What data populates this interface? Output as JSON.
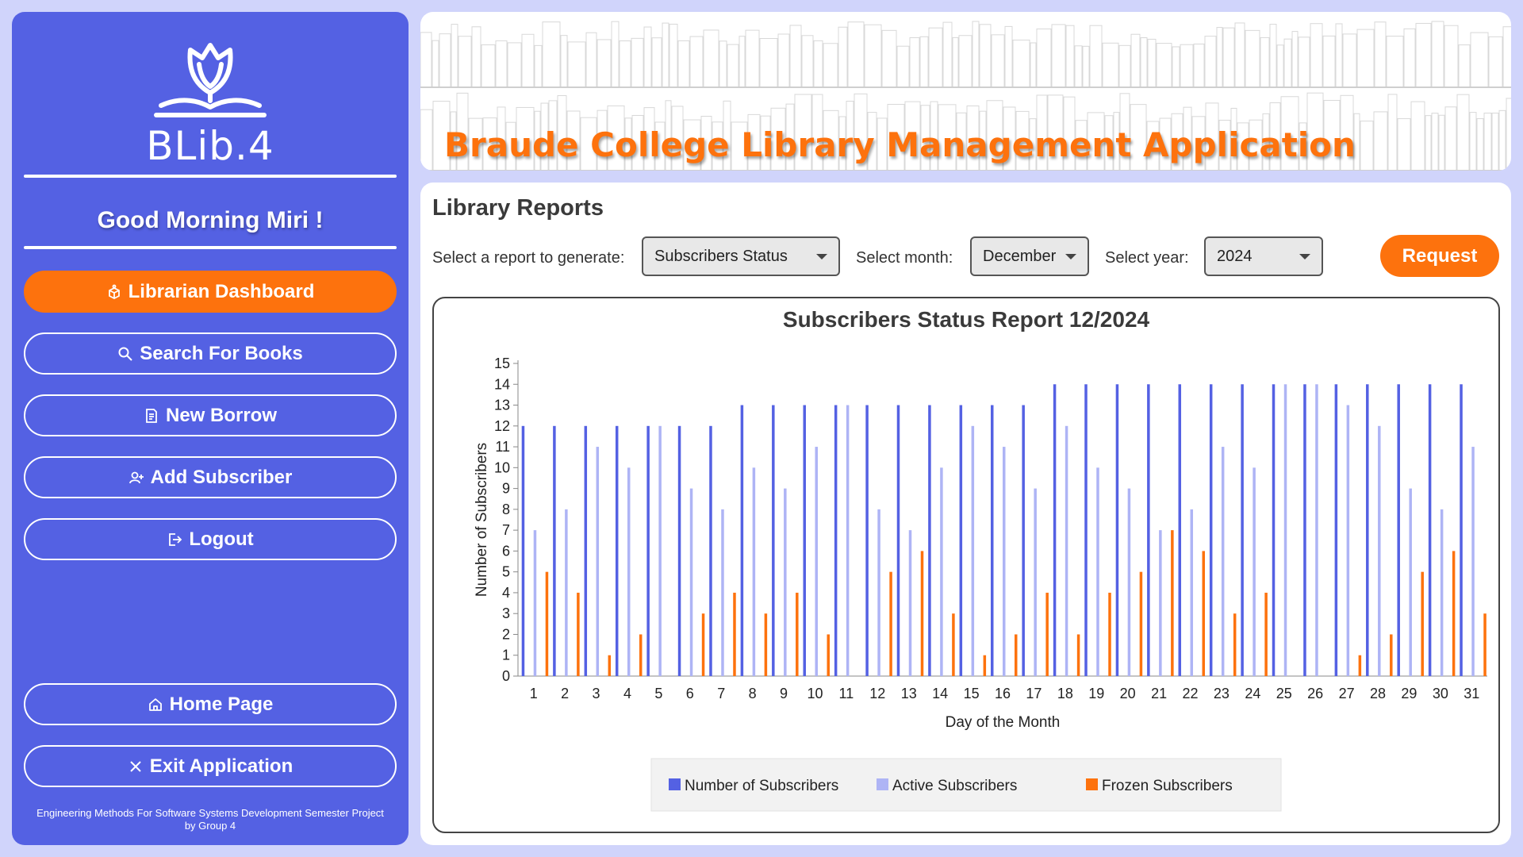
{
  "sidebar": {
    "logo_text": "BLib.4",
    "greeting": "Good Morning Miri !",
    "nav": [
      {
        "label": "Librarian Dashboard",
        "icon": "box-icon"
      },
      {
        "label": "Search For Books",
        "icon": "search-icon"
      },
      {
        "label": "New Borrow",
        "icon": "document-icon"
      },
      {
        "label": "Add Subscriber",
        "icon": "add-user-icon"
      },
      {
        "label": "Logout",
        "icon": "logout-icon"
      }
    ],
    "home_label": "Home Page",
    "exit_label": "Exit Application",
    "footer_line1": "Engineering Methods For Software Systems Development Semester Project",
    "footer_line2": "by Group 4"
  },
  "header": {
    "title": "Braude College Library Management Application"
  },
  "reports": {
    "section_title": "Library Reports",
    "report_label": "Select a report to generate:",
    "report_value": "Subscribers Status",
    "month_label": "Select month:",
    "month_value": "December",
    "year_label": "Select year:",
    "year_value": "2024",
    "request_label": "Request"
  },
  "colors": {
    "sidebar": "#5461e3",
    "accent": "#fd720d",
    "series_total": "#5461e3",
    "series_active": "#aeb4f5",
    "series_frozen": "#fd720d"
  },
  "chart_data": {
    "type": "bar",
    "title": "Subscribers Status Report 12/2024",
    "xlabel": "Day of the Month",
    "ylabel": "Number of Subscribers",
    "ylim": [
      0,
      15
    ],
    "legend_position": "bottom",
    "categories": [
      "1",
      "2",
      "3",
      "4",
      "5",
      "6",
      "7",
      "8",
      "9",
      "10",
      "11",
      "12",
      "13",
      "14",
      "15",
      "16",
      "17",
      "18",
      "19",
      "20",
      "21",
      "22",
      "23",
      "24",
      "25",
      "26",
      "27",
      "28",
      "29",
      "30",
      "31"
    ],
    "series": [
      {
        "name": "Number of Subscribers",
        "values": [
          12,
          12,
          12,
          12,
          12,
          12,
          12,
          13,
          13,
          13,
          13,
          13,
          13,
          13,
          13,
          13,
          13,
          14,
          14,
          14,
          14,
          14,
          14,
          14,
          14,
          14,
          14,
          14,
          14,
          14,
          14
        ]
      },
      {
        "name": "Active Subscribers",
        "values": [
          7,
          8,
          11,
          10,
          12,
          9,
          8,
          10,
          9,
          11,
          13,
          8,
          7,
          10,
          12,
          11,
          9,
          12,
          10,
          9,
          7,
          8,
          11,
          10,
          14,
          14,
          13,
          12,
          9,
          8,
          11
        ]
      },
      {
        "name": "Frozen Subscribers",
        "values": [
          5,
          4,
          1,
          2,
          0,
          3,
          4,
          3,
          4,
          2,
          0,
          5,
          6,
          3,
          1,
          2,
          4,
          2,
          4,
          5,
          7,
          6,
          3,
          4,
          0,
          0,
          1,
          2,
          5,
          6,
          3
        ]
      }
    ]
  }
}
